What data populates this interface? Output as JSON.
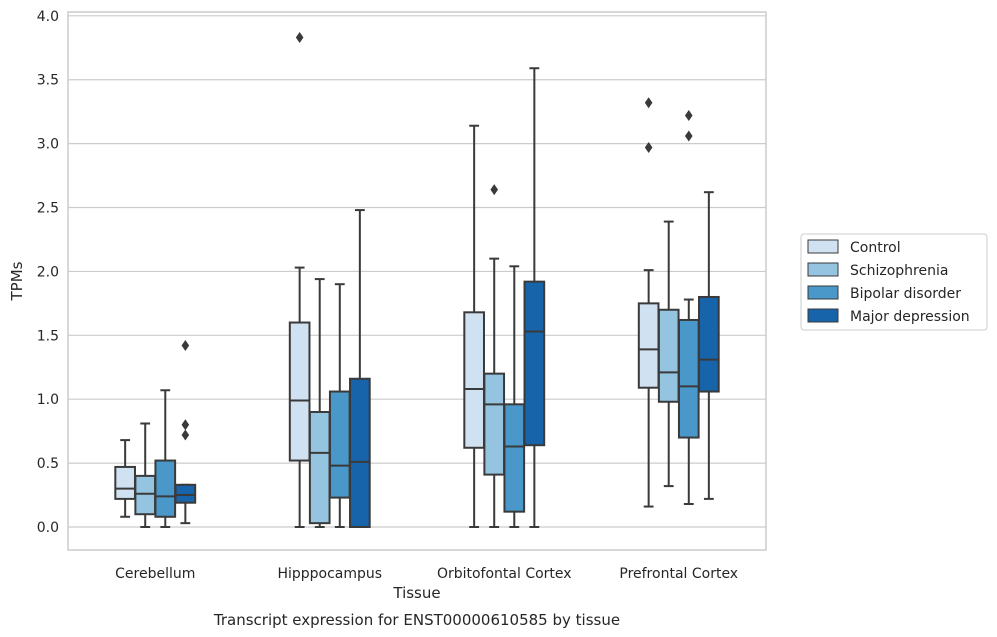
{
  "caption": "Transcript expression for ENST00000610585 by tissue",
  "colors": {
    "Control": "#d0e1f2",
    "Schizophrenia": "#94c4df",
    "Bipolar disorder": "#4a98c9",
    "Major depression": "#1764ab",
    "line": "#3a3a3a",
    "grid": "#cccccc"
  },
  "chart_data": {
    "type": "box",
    "xlabel": "Tissue",
    "ylabel": "TPMs",
    "ylim": [
      -0.18,
      4.03
    ],
    "yticks": [
      "0.0",
      "0.5",
      "1.0",
      "1.5",
      "2.0",
      "2.5",
      "3.0",
      "3.5",
      "4.0"
    ],
    "grid": "horizontal",
    "legend_position": "right",
    "categories": [
      "Cerebellum",
      "Hipppocampus",
      "Orbitofontal Cortex",
      "Prefrontal Cortex"
    ],
    "series": [
      {
        "name": "Control",
        "boxes": [
          {
            "whislo": 0.08,
            "q1": 0.22,
            "med": 0.3,
            "q3": 0.47,
            "whishi": 0.68,
            "fliers": []
          },
          {
            "whislo": 0.0,
            "q1": 0.52,
            "med": 0.99,
            "q3": 1.6,
            "whishi": 2.03,
            "fliers": [
              3.83
            ]
          },
          {
            "whislo": 0.0,
            "q1": 0.62,
            "med": 1.08,
            "q3": 1.68,
            "whishi": 3.14,
            "fliers": []
          },
          {
            "whislo": 0.16,
            "q1": 1.09,
            "med": 1.39,
            "q3": 1.75,
            "whishi": 2.01,
            "fliers": [
              3.32,
              2.97
            ]
          }
        ]
      },
      {
        "name": "Schizophrenia",
        "boxes": [
          {
            "whislo": 0.0,
            "q1": 0.1,
            "med": 0.26,
            "q3": 0.4,
            "whishi": 0.81,
            "fliers": []
          },
          {
            "whislo": 0.0,
            "q1": 0.03,
            "med": 0.58,
            "q3": 0.9,
            "whishi": 1.94,
            "fliers": []
          },
          {
            "whislo": 0.0,
            "q1": 0.41,
            "med": 0.96,
            "q3": 1.2,
            "whishi": 2.1,
            "fliers": [
              2.64
            ]
          },
          {
            "whislo": 0.32,
            "q1": 0.98,
            "med": 1.21,
            "q3": 1.7,
            "whishi": 2.39,
            "fliers": []
          }
        ]
      },
      {
        "name": "Bipolar disorder",
        "boxes": [
          {
            "whislo": 0.0,
            "q1": 0.08,
            "med": 0.24,
            "q3": 0.52,
            "whishi": 1.07,
            "fliers": []
          },
          {
            "whislo": 0.0,
            "q1": 0.23,
            "med": 0.48,
            "q3": 1.06,
            "whishi": 1.9,
            "fliers": []
          },
          {
            "whislo": 0.0,
            "q1": 0.12,
            "med": 0.63,
            "q3": 0.96,
            "whishi": 2.04,
            "fliers": []
          },
          {
            "whislo": 0.18,
            "q1": 0.7,
            "med": 1.1,
            "q3": 1.62,
            "whishi": 1.78,
            "fliers": [
              3.22,
              3.06
            ]
          }
        ]
      },
      {
        "name": "Major depression",
        "boxes": [
          {
            "whislo": 0.03,
            "q1": 0.19,
            "med": 0.25,
            "q3": 0.33,
            "whishi": 0.33,
            "fliers": [
              1.42,
              0.8,
              0.72
            ]
          },
          {
            "whislo": 0.0,
            "q1": 0.0,
            "med": 0.51,
            "q3": 1.16,
            "whishi": 2.48,
            "fliers": []
          },
          {
            "whislo": 0.0,
            "q1": 0.64,
            "med": 1.53,
            "q3": 1.92,
            "whishi": 3.59,
            "fliers": []
          },
          {
            "whislo": 0.22,
            "q1": 1.06,
            "med": 1.31,
            "q3": 1.8,
            "whishi": 2.62,
            "fliers": []
          }
        ]
      }
    ]
  }
}
